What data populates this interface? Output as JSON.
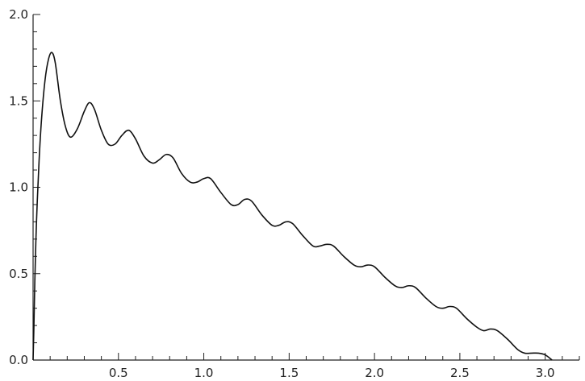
{
  "chart_data": {
    "type": "line",
    "title": "",
    "xlabel": "",
    "ylabel": "",
    "xlim": [
      0,
      3.2
    ],
    "ylim": [
      0,
      2.0
    ],
    "grid": false,
    "legend": "none",
    "x_ticks": [
      0.5,
      1.0,
      1.5,
      2.0,
      2.5,
      3.0
    ],
    "x_tick_labels": [
      "0.5",
      "1.0",
      "1.5",
      "2.0",
      "2.5",
      "3.0"
    ],
    "y_ticks": [
      0.0,
      0.5,
      1.0,
      1.5,
      2.0
    ],
    "y_tick_labels": [
      "0.0",
      "0.5",
      "1.0",
      "1.5",
      "2.0"
    ],
    "series": [
      {
        "color": "#111111",
        "points": [
          [
            0.0,
            0.0
          ],
          [
            0.005,
            0.2
          ],
          [
            0.01,
            0.45
          ],
          [
            0.02,
            0.8
          ],
          [
            0.035,
            1.15
          ],
          [
            0.05,
            1.4
          ],
          [
            0.07,
            1.62
          ],
          [
            0.09,
            1.74
          ],
          [
            0.11,
            1.78
          ],
          [
            0.13,
            1.72
          ],
          [
            0.16,
            1.5
          ],
          [
            0.19,
            1.35
          ],
          [
            0.22,
            1.29
          ],
          [
            0.26,
            1.34
          ],
          [
            0.3,
            1.44
          ],
          [
            0.33,
            1.49
          ],
          [
            0.36,
            1.45
          ],
          [
            0.4,
            1.33
          ],
          [
            0.44,
            1.25
          ],
          [
            0.48,
            1.25
          ],
          [
            0.52,
            1.3
          ],
          [
            0.56,
            1.33
          ],
          [
            0.6,
            1.28
          ],
          [
            0.65,
            1.18
          ],
          [
            0.7,
            1.14
          ],
          [
            0.74,
            1.16
          ],
          [
            0.78,
            1.19
          ],
          [
            0.82,
            1.17
          ],
          [
            0.87,
            1.08
          ],
          [
            0.92,
            1.03
          ],
          [
            0.96,
            1.03
          ],
          [
            1.0,
            1.05
          ],
          [
            1.04,
            1.05
          ],
          [
            1.1,
            0.97
          ],
          [
            1.16,
            0.9
          ],
          [
            1.2,
            0.9
          ],
          [
            1.24,
            0.93
          ],
          [
            1.28,
            0.92
          ],
          [
            1.34,
            0.84
          ],
          [
            1.4,
            0.78
          ],
          [
            1.44,
            0.78
          ],
          [
            1.48,
            0.8
          ],
          [
            1.52,
            0.79
          ],
          [
            1.58,
            0.72
          ],
          [
            1.64,
            0.66
          ],
          [
            1.68,
            0.66
          ],
          [
            1.72,
            0.67
          ],
          [
            1.76,
            0.66
          ],
          [
            1.82,
            0.6
          ],
          [
            1.88,
            0.55
          ],
          [
            1.92,
            0.54
          ],
          [
            1.96,
            0.55
          ],
          [
            2.0,
            0.54
          ],
          [
            2.06,
            0.48
          ],
          [
            2.12,
            0.43
          ],
          [
            2.16,
            0.42
          ],
          [
            2.2,
            0.43
          ],
          [
            2.24,
            0.42
          ],
          [
            2.3,
            0.36
          ],
          [
            2.36,
            0.31
          ],
          [
            2.4,
            0.3
          ],
          [
            2.44,
            0.31
          ],
          [
            2.48,
            0.3
          ],
          [
            2.54,
            0.24
          ],
          [
            2.6,
            0.19
          ],
          [
            2.64,
            0.17
          ],
          [
            2.68,
            0.18
          ],
          [
            2.72,
            0.17
          ],
          [
            2.78,
            0.12
          ],
          [
            2.84,
            0.06
          ],
          [
            2.88,
            0.04
          ],
          [
            2.92,
            0.04
          ],
          [
            2.96,
            0.04
          ],
          [
            3.0,
            0.03
          ],
          [
            3.04,
            0.0
          ]
        ]
      }
    ]
  }
}
